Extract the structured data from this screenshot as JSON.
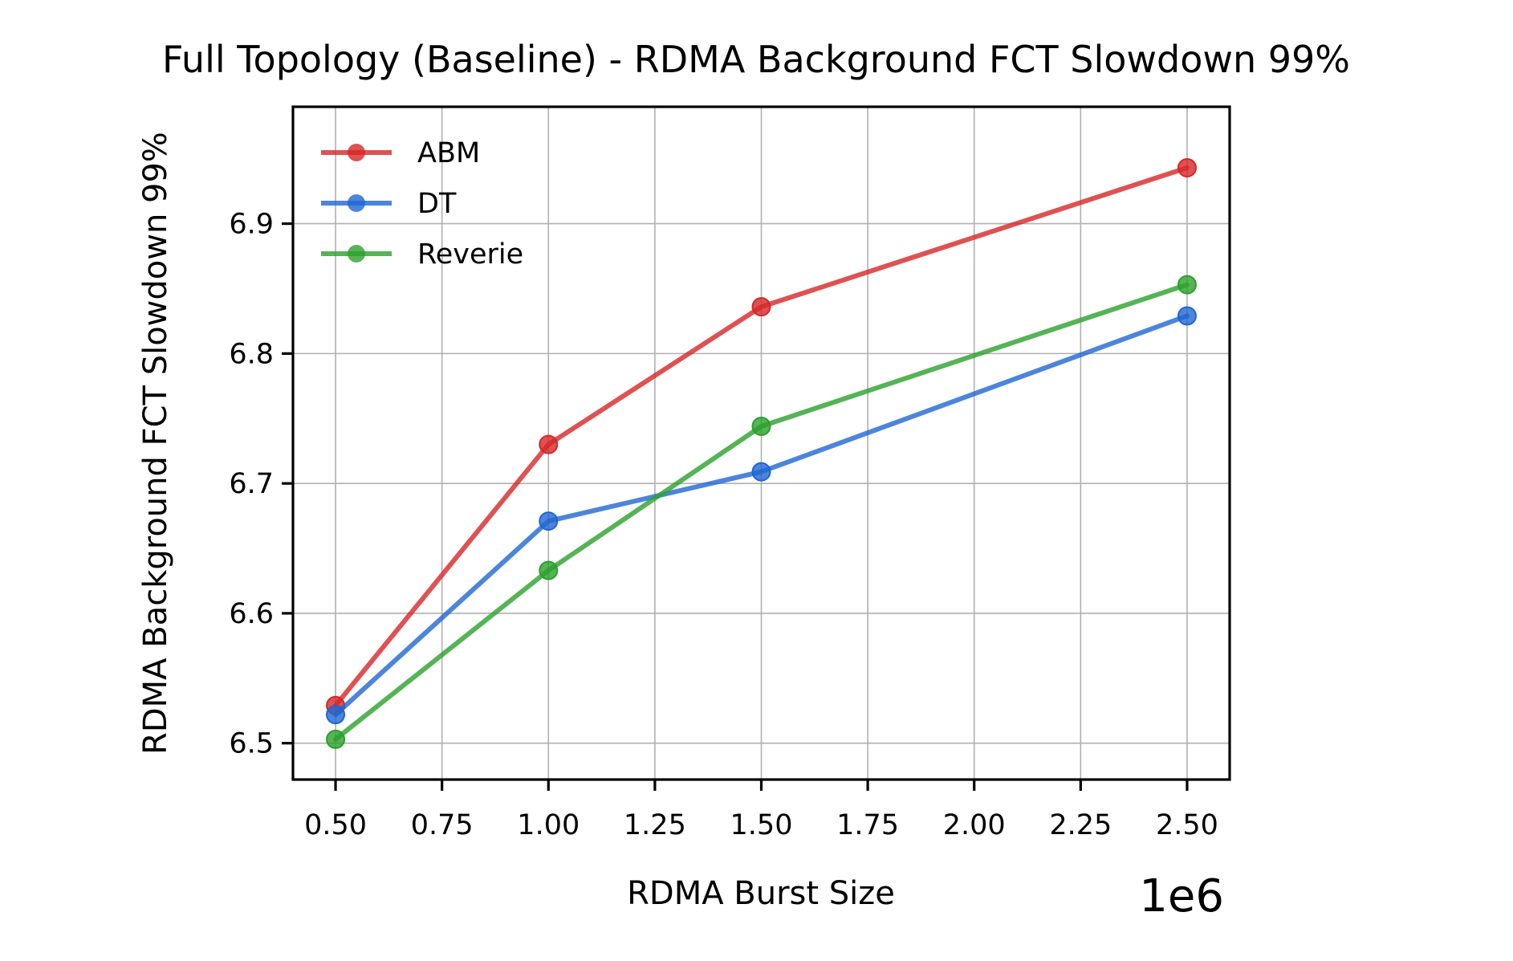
{
  "chart_data": {
    "type": "line",
    "title": "Full Topology (Baseline) - RDMA Background FCT Slowdown 99%",
    "xlabel": "RDMA Burst Size",
    "ylabel": "RDMA Background FCT Slowdown 99%",
    "x_offset_label": "1e6",
    "x": [
      0.5,
      1.0,
      1.5,
      2.5
    ],
    "xlim": [
      0.4,
      2.6
    ],
    "ylim": [
      6.472,
      6.99
    ],
    "x_ticks": [
      0.5,
      0.75,
      1.0,
      1.25,
      1.5,
      1.75,
      2.0,
      2.25,
      2.5
    ],
    "x_tick_labels": [
      "0.50",
      "0.75",
      "1.00",
      "1.25",
      "1.50",
      "1.75",
      "2.00",
      "2.25",
      "2.50"
    ],
    "y_ticks": [
      6.5,
      6.6,
      6.7,
      6.8,
      6.9
    ],
    "y_tick_labels": [
      "6.5",
      "6.6",
      "6.7",
      "6.8",
      "6.9"
    ],
    "grid": true,
    "legend_position": "top-left",
    "series": [
      {
        "name": "ABM",
        "color": "#d62728",
        "values": [
          6.529,
          6.73,
          6.836,
          6.943
        ]
      },
      {
        "name": "DT",
        "color": "#1f66d1",
        "values": [
          6.522,
          6.671,
          6.709,
          6.829
        ]
      },
      {
        "name": "Reverie",
        "color": "#2ca02c",
        "values": [
          6.503,
          6.633,
          6.744,
          6.853
        ]
      }
    ]
  }
}
